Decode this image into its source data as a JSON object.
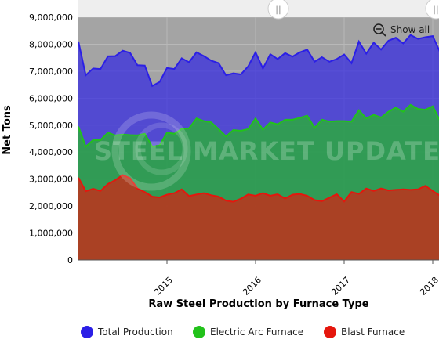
{
  "chart_data": {
    "type": "area",
    "title": "Raw Steel Production by Furnace Type",
    "xlabel": "Raw Steel Production by Furnace Type",
    "ylabel": "Net Tons",
    "ylim": [
      0,
      9000000
    ],
    "yticks": [
      "0",
      "1,000,000",
      "2,000,000",
      "3,000,000",
      "4,000,000",
      "5,000,000",
      "6,000,000",
      "7,000,000",
      "8,000,000",
      "9,000,000"
    ],
    "xticks": [
      {
        "label": "2015",
        "month": 12
      },
      {
        "label": "2016",
        "month": 24
      },
      {
        "label": "2017",
        "month": 36
      },
      {
        "label": "2018",
        "month": 48
      }
    ],
    "x_start": "Jan 2014",
    "x_step": "month",
    "series": [
      {
        "name": "Total Production",
        "color": "#2b1fe6",
        "values": [
          8100000,
          6850000,
          7100000,
          7080000,
          7550000,
          7560000,
          7760000,
          7680000,
          7220000,
          7210000,
          6450000,
          6600000,
          7120000,
          7080000,
          7480000,
          7330000,
          7700000,
          7560000,
          7390000,
          7300000,
          6850000,
          6920000,
          6880000,
          7180000,
          7700000,
          7100000,
          7630000,
          7450000,
          7670000,
          7540000,
          7700000,
          7800000,
          7350000,
          7520000,
          7350000,
          7450000,
          7620000,
          7300000,
          8100000,
          7650000,
          8060000,
          7800000,
          8130000,
          8240000,
          8030000,
          8340000,
          8200000,
          8260000,
          8300000,
          7700000
        ]
      },
      {
        "name": "Electric Arc Furnace",
        "color": "#22c21b",
        "values": [
          4950000,
          4200000,
          4450000,
          4450000,
          4720000,
          4620000,
          4650000,
          4630000,
          4620000,
          4680000,
          4200000,
          4250000,
          4720000,
          4680000,
          4860000,
          4880000,
          5250000,
          5150000,
          5100000,
          4850000,
          4580000,
          4820000,
          4790000,
          4850000,
          5250000,
          4830000,
          5100000,
          5030000,
          5200000,
          5200000,
          5270000,
          5350000,
          4900000,
          5200000,
          5130000,
          5150000,
          5150000,
          5130000,
          5550000,
          5250000,
          5380000,
          5280000,
          5500000,
          5650000,
          5500000,
          5750000,
          5600000,
          5570000,
          5700000,
          5150000
        ]
      },
      {
        "name": "Blast Furnace",
        "color": "#e5160d",
        "values": [
          3050000,
          2550000,
          2640000,
          2560000,
          2820000,
          2960000,
          3150000,
          3030000,
          2650000,
          2520000,
          2350000,
          2320000,
          2420000,
          2480000,
          2620000,
          2370000,
          2430000,
          2480000,
          2400000,
          2350000,
          2200000,
          2160000,
          2270000,
          2430000,
          2380000,
          2480000,
          2380000,
          2440000,
          2280000,
          2420000,
          2450000,
          2380000,
          2220000,
          2180000,
          2310000,
          2440000,
          2170000,
          2520000,
          2450000,
          2650000,
          2560000,
          2650000,
          2580000,
          2600000,
          2620000,
          2600000,
          2620000,
          2750000,
          2560000,
          2380000
        ]
      }
    ],
    "legend_position": "bottom",
    "grid": true
  },
  "navigator": {
    "handle_left_label": "||",
    "handle_right_label": "||"
  },
  "controls": {
    "show_all_label": "Show all"
  },
  "watermark": {
    "text": "STEEL MARKET UPDATE"
  }
}
